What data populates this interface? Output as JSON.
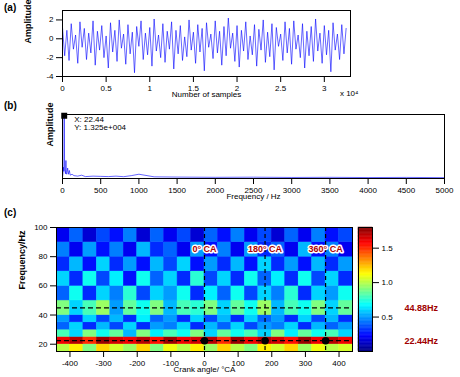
{
  "chart_data": [
    {
      "type": "line",
      "title": "(a)",
      "x_label": "Number of samples",
      "y_label": "Amplitude",
      "x_scale_label": "x 10⁴",
      "xlim": [
        0,
        3.3
      ],
      "xticks": [
        0,
        0.5,
        1,
        1.5,
        2,
        2.5,
        3
      ],
      "ylim": [
        -4,
        3
      ],
      "yticks": [
        -4,
        -2,
        0,
        2
      ],
      "color": "#0000ff",
      "x": [
        0,
        0.025,
        0.05,
        0.075,
        0.1,
        0.125,
        0.15,
        0.175,
        0.2,
        0.225,
        0.25,
        0.275,
        0.3,
        0.325,
        0.35,
        0.375,
        0.4,
        0.425,
        0.45,
        0.475,
        0.5,
        0.525,
        0.55,
        0.575,
        0.6,
        0.625,
        0.65,
        0.675,
        0.7,
        0.725,
        0.75,
        0.775,
        0.8,
        0.825,
        0.85,
        0.875,
        0.9,
        0.925,
        0.95,
        0.975,
        1,
        1.025,
        1.05,
        1.075,
        1.1,
        1.125,
        1.15,
        1.175,
        1.2,
        1.225,
        1.25,
        1.275,
        1.3,
        1.325,
        1.35,
        1.375,
        1.4,
        1.425,
        1.45,
        1.475,
        1.5,
        1.525,
        1.55,
        1.575,
        1.6,
        1.625,
        1.65,
        1.675,
        1.7,
        1.725,
        1.75,
        1.775,
        1.8,
        1.825,
        1.85,
        1.875,
        1.9,
        1.925,
        1.95,
        1.975,
        2,
        2.025,
        2.05,
        2.075,
        2.1,
        2.125,
        2.15,
        2.175,
        2.2,
        2.225,
        2.25,
        2.275,
        2.3,
        2.325,
        2.35,
        2.375,
        2.4,
        2.425,
        2.45,
        2.475,
        2.5,
        2.525,
        2.55,
        2.575,
        2.6,
        2.625,
        2.65,
        2.675,
        2.7,
        2.725,
        2.75,
        2.775,
        2.8,
        2.825,
        2.85,
        2.875,
        2.9,
        2.925,
        2.95,
        2.975,
        3,
        3.025,
        3.05,
        3.075,
        3.1,
        3.125,
        3.15,
        3.175,
        3.2,
        3.225,
        3.25
      ],
      "values": [
        1.2,
        -1.8,
        0.9,
        -2.3,
        1.6,
        -1.1,
        0.4,
        -2.6,
        1.8,
        -0.9,
        1.1,
        -2.2,
        0.6,
        -1.5,
        1.9,
        -2.8,
        0.8,
        -1.2,
        1.4,
        -2.0,
        0.3,
        -3.1,
        1.7,
        -1.4,
        0.9,
        -2.4,
        2.0,
        -1.0,
        0.5,
        -2.7,
        1.5,
        -1.6,
        0.7,
        -3.6,
        1.3,
        -0.8,
        1.9,
        -2.2,
        0.6,
        -1.7,
        1.2,
        -2.9,
        2.1,
        -1.3,
        0.4,
        -2.0,
        1.6,
        -2.5,
        0.8,
        -1.1,
        1.8,
        -3.2,
        0.9,
        -1.6,
        1.4,
        -2.3,
        0.2,
        -1.9,
        2.0,
        -1.2,
        0.7,
        -2.6,
        1.5,
        -1.4,
        1.1,
        -3.4,
        1.7,
        -0.9,
        0.5,
        -2.1,
        1.9,
        -1.5,
        0.8,
        -2.8,
        1.3,
        -1.8,
        2.2,
        -1.0,
        0.6,
        -2.4,
        1.4,
        -3.0,
        0.9,
        -1.3,
        1.8,
        -2.2,
        0.3,
        -1.7,
        1.5,
        -2.9,
        1.0,
        -1.2,
        2.0,
        -2.5,
        0.7,
        -1.9,
        1.6,
        -3.3,
        1.2,
        -0.8,
        0.5,
        -2.3,
        1.8,
        -1.5,
        1.1,
        -2.7,
        1.9,
        -1.1,
        0.4,
        -2.0,
        1.6,
        -3.1,
        0.8,
        -1.8,
        1.3,
        -2.4,
        2.1,
        -1.3,
        0.6,
        -2.6,
        1.4,
        -1.7,
        0.9,
        -3.5,
        1.7,
        -1.2,
        0.5,
        -2.2,
        1.5,
        -1.6,
        1.1
      ]
    },
    {
      "type": "line",
      "title": "(b)",
      "x_label": "Frequency / Hz",
      "y_label": "Amplitude",
      "xlim": [
        0,
        5000
      ],
      "xticks": [
        0,
        500,
        1000,
        1500,
        2000,
        2500,
        3000,
        3500,
        4000,
        4500,
        5000
      ],
      "ylim": [
        0,
        13500
      ],
      "tick_labels": "x",
      "color": "#0000ff",
      "x": [
        0,
        5,
        11.2,
        17,
        22.44,
        28,
        33.7,
        39,
        44.88,
        50,
        56,
        67.3,
        78.5,
        89.8,
        101,
        125,
        150,
        200,
        250,
        300,
        400,
        500,
        600,
        700,
        800,
        900,
        1000,
        1200,
        1500,
        2000,
        2500,
        3000,
        3500,
        4000,
        4500,
        5000
      ],
      "values": [
        200,
        800,
        2400,
        1500,
        13250,
        1800,
        1500,
        1000,
        3800,
        1200,
        900,
        2200,
        900,
        1700,
        700,
        900,
        600,
        500,
        700,
        400,
        500,
        450,
        400,
        500,
        380,
        600,
        900,
        350,
        300,
        250,
        280,
        220,
        250,
        200,
        230,
        180
      ],
      "annotations": [
        {
          "x": 22.44,
          "y": 13250,
          "text": [
            "X: 22.44",
            "Y: 1.325e+004"
          ]
        }
      ]
    },
    {
      "type": "heatmap",
      "title": "(c)",
      "x_label": "Crank angle/ °CA",
      "y_label": "Frequency/Hz",
      "xlim": [
        -440,
        440
      ],
      "xticks": [
        -400,
        -300,
        -200,
        -100,
        0,
        100,
        200,
        300,
        400
      ],
      "ylim": [
        15,
        100
      ],
      "yticks": [
        20,
        40,
        60,
        80,
        100
      ],
      "x_bins": [
        -440,
        -400,
        -360,
        -320,
        -280,
        -240,
        -200,
        -160,
        -120,
        -80,
        -40,
        0,
        40,
        80,
        120,
        160,
        200,
        240,
        280,
        320,
        360,
        400,
        440
      ],
      "y_bins": [
        15,
        20,
        25,
        30,
        35,
        40,
        50,
        60,
        70,
        80,
        90,
        100
      ],
      "values": [
        [
          1.0,
          1.15,
          0.9,
          1.2,
          1.05,
          0.95,
          1.2,
          0.9,
          1.1,
          1.0,
          1.15,
          0.95,
          1.2,
          1.0,
          0.9,
          1.15,
          1.05,
          1.2,
          0.95,
          1.1,
          1.0,
          1.05
        ],
        [
          1.6,
          1.7,
          1.5,
          1.75,
          1.65,
          1.6,
          1.7,
          1.55,
          1.75,
          1.6,
          1.65,
          1.7,
          1.5,
          1.75,
          1.6,
          1.7,
          1.65,
          1.55,
          1.75,
          1.6,
          1.7,
          1.6
        ],
        [
          0.8,
          0.6,
          0.9,
          0.7,
          0.85,
          0.55,
          0.9,
          0.65,
          0.8,
          0.7,
          0.9,
          0.6,
          0.85,
          0.7,
          0.8,
          0.6,
          0.9,
          0.65,
          0.85,
          0.7,
          0.8,
          0.6
        ],
        [
          0.4,
          0.6,
          0.3,
          0.55,
          0.35,
          0.6,
          0.3,
          0.5,
          0.45,
          0.6,
          0.3,
          0.55,
          0.4,
          0.6,
          0.35,
          0.5,
          0.45,
          0.6,
          0.3,
          0.55,
          0.4,
          0.5
        ],
        [
          0.5,
          0.3,
          0.6,
          0.35,
          0.55,
          0.3,
          0.65,
          0.4,
          0.5,
          0.3,
          0.6,
          0.35,
          0.55,
          0.3,
          0.6,
          0.4,
          0.5,
          0.3,
          0.6,
          0.35,
          0.55,
          0.3
        ],
        [
          0.9,
          0.6,
          0.8,
          0.95,
          0.5,
          0.85,
          0.7,
          0.9,
          0.55,
          0.8,
          0.75,
          0.9,
          0.6,
          0.85,
          0.7,
          0.95,
          0.55,
          0.8,
          0.7,
          0.9,
          0.6,
          0.85
        ],
        [
          0.4,
          0.7,
          0.3,
          0.6,
          0.45,
          0.75,
          0.35,
          0.6,
          0.5,
          0.7,
          0.3,
          0.65,
          0.4,
          0.7,
          0.35,
          0.6,
          0.45,
          0.75,
          0.3,
          0.6,
          0.5,
          0.7
        ],
        [
          0.6,
          0.3,
          0.7,
          0.35,
          0.65,
          0.25,
          0.7,
          0.4,
          0.6,
          0.3,
          0.75,
          0.35,
          0.6,
          0.3,
          0.7,
          0.4,
          0.65,
          0.3,
          0.7,
          0.35,
          0.6,
          0.3
        ],
        [
          0.3,
          0.55,
          0.25,
          0.6,
          0.3,
          0.5,
          0.25,
          0.55,
          0.35,
          0.6,
          0.25,
          0.5,
          0.3,
          0.55,
          0.25,
          0.6,
          0.3,
          0.5,
          0.25,
          0.55,
          0.3,
          0.5
        ],
        [
          0.45,
          0.2,
          0.5,
          0.25,
          0.45,
          0.2,
          0.55,
          0.3,
          0.4,
          0.2,
          0.5,
          0.25,
          0.45,
          0.2,
          0.5,
          0.3,
          0.4,
          0.2,
          0.55,
          0.25,
          0.45,
          0.2
        ],
        [
          0.2,
          0.4,
          0.15,
          0.35,
          0.25,
          0.45,
          0.15,
          0.4,
          0.2,
          0.35,
          0.15,
          0.4,
          0.25,
          0.45,
          0.2,
          0.35,
          0.15,
          0.4,
          0.2,
          0.45,
          0.25,
          0.35
        ]
      ],
      "colorbar": {
        "range": [
          0,
          1.8
        ],
        "ticks": [
          0.5,
          {
            "value": 1,
            "label": "1.0"
          },
          1.5
        ]
      },
      "vlines": [
        {
          "x": 0,
          "label": "0° CA"
        },
        {
          "x": 180,
          "label": "180° CA"
        },
        {
          "x": 360,
          "label": "360° CA"
        }
      ],
      "hlines": [
        {
          "y": 44.88,
          "label": "44.88Hz"
        },
        {
          "y": 22.44,
          "label": "22.44Hz"
        }
      ],
      "points": [
        {
          "x": 0,
          "y": 22.44
        },
        {
          "x": 180,
          "y": 22.44
        },
        {
          "x": 360,
          "y": 22.44
        }
      ]
    }
  ]
}
